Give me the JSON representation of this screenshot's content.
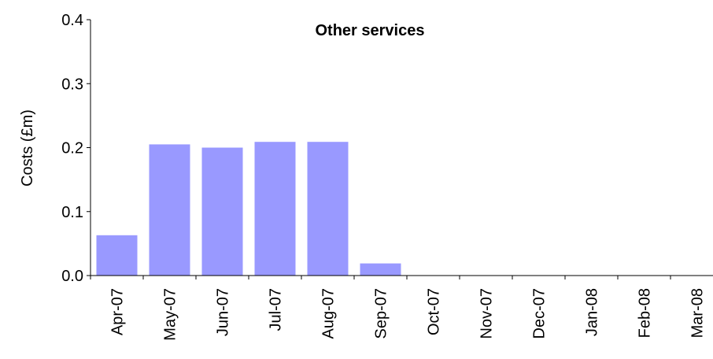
{
  "chart_data": {
    "type": "bar",
    "title": "Other services",
    "xlabel": "",
    "ylabel": "Costs (£m)",
    "ylim": [
      0,
      0.4
    ],
    "yticks": [
      "0.0",
      "0.1",
      "0.2",
      "0.3",
      "0.4"
    ],
    "categories": [
      "Apr-07",
      "May-07",
      "Jun-07",
      "Jul-07",
      "Aug-07",
      "Sep-07",
      "Oct-07",
      "Nov-07",
      "Dec-07",
      "Jan-08",
      "Feb-08",
      "Mar-08"
    ],
    "values": [
      0.063,
      0.205,
      0.2,
      0.209,
      0.209,
      0.019,
      0,
      0,
      0,
      0,
      0,
      0
    ],
    "bar_color": "#9999FF",
    "grid": false,
    "legend": "none"
  }
}
